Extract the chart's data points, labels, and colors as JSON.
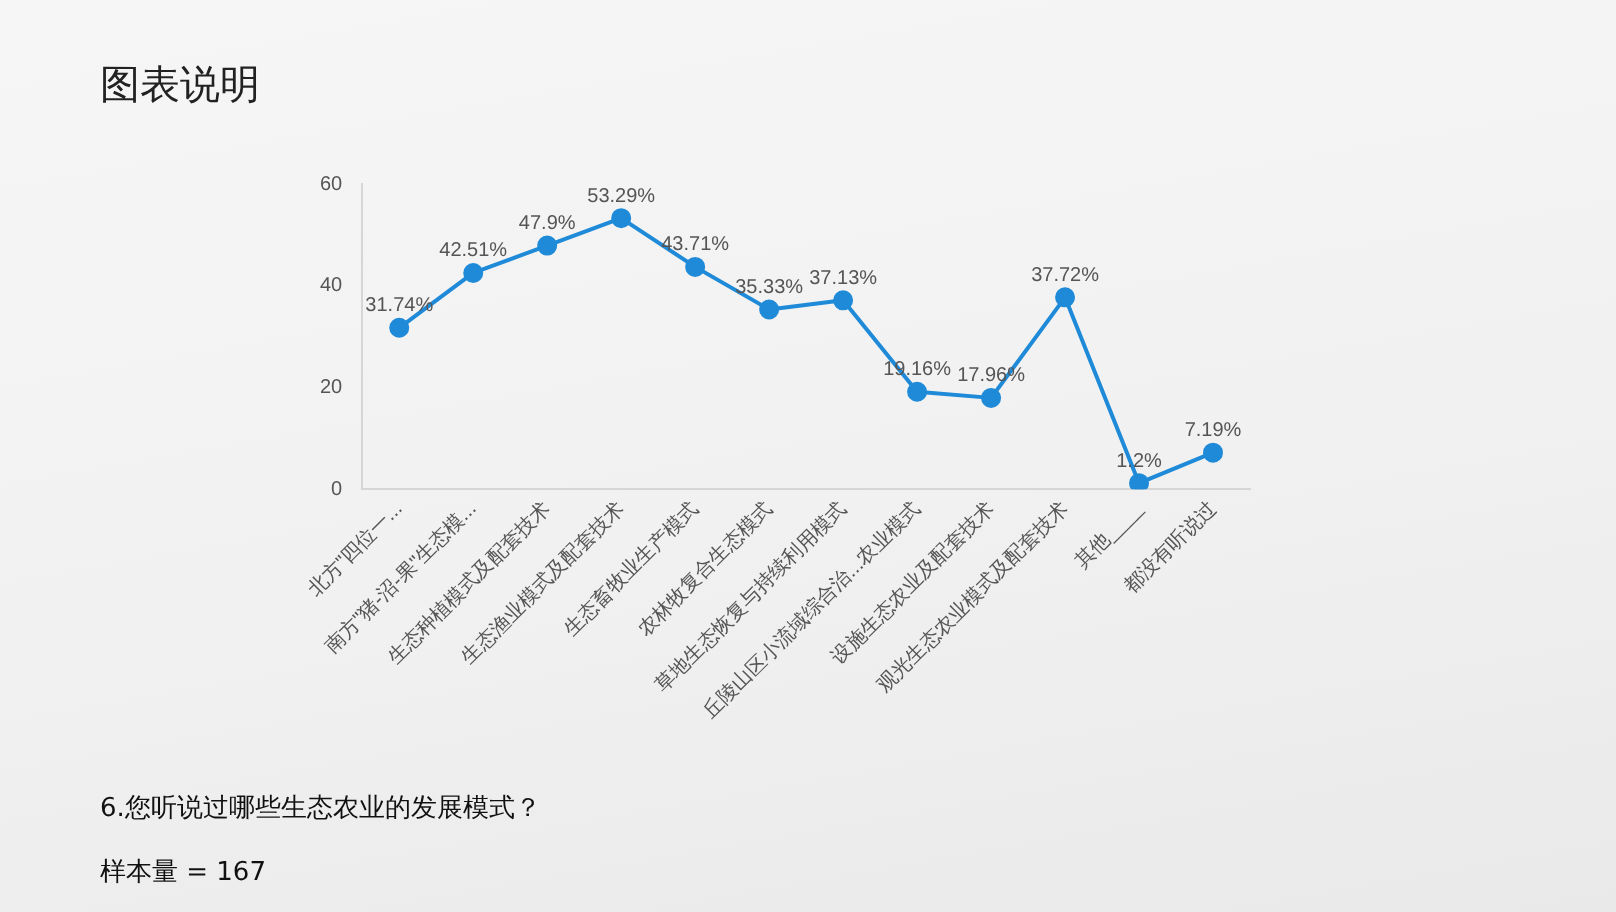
{
  "chart_data": {
    "type": "line",
    "title": "图表说明",
    "categories": [
      "北方\"四位一...",
      "南方\"猪-沼-果\"生态模...",
      "生态种植模式及配套技术",
      "生态渔业模式及配套技术",
      "生态畜牧业生产模式",
      "农林牧复合生态模式",
      "草地生态恢复与持续利用模式",
      "丘陵山区小流域综合治...农业模式",
      "设施生态农业及配套技术",
      "观光生态农业模式及配套技术",
      "其他____",
      "都没有听说过"
    ],
    "values": [
      31.74,
      42.51,
      47.9,
      53.29,
      43.71,
      35.33,
      37.13,
      19.16,
      17.96,
      37.72,
      1.2,
      7.19
    ],
    "value_labels": [
      "31.74%",
      "42.51%",
      "47.9%",
      "53.29%",
      "43.71%",
      "35.33%",
      "37.13%",
      "19.16%",
      "17.96%",
      "37.72%",
      "1.2%",
      "7.19%"
    ],
    "color": "#1e8ad8",
    "marker": "circle",
    "ylim": [
      0,
      60
    ],
    "yticks": [
      0,
      20,
      40,
      60
    ],
    "grid": false,
    "legend": false,
    "annotations": [
      "6.您听说过哪些生态农业的发展模式？",
      "样本量 = 167"
    ]
  }
}
